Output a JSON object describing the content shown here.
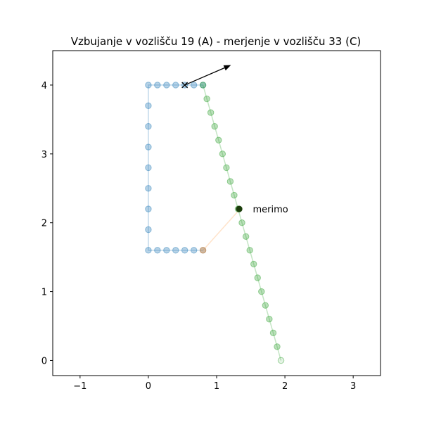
{
  "chart_data": {
    "type": "scatter",
    "title": "Vzbujanje v vozlišču 19  (A) - merjenje v vozlišču 33 (C)",
    "xlim": [
      -1.4,
      3.4
    ],
    "ylim": [
      -0.22,
      4.5
    ],
    "xticks": [
      -1,
      0,
      1,
      2,
      3
    ],
    "xtick_labels": [
      "−1",
      "0",
      "1",
      "2",
      "3"
    ],
    "yticks": [
      0,
      1,
      2,
      3,
      4
    ],
    "ytick_labels": [
      "0",
      "1",
      "2",
      "3",
      "4"
    ],
    "grid": false,
    "colors": {
      "blue": "#1f77b4",
      "green": "#2ca02c",
      "orange": "#ff7f0e",
      "measure": "#1a3d0a",
      "arrow": "#000000"
    },
    "series": [
      {
        "points": [
          [
            0.8,
            1.6
          ],
          [
            0.667,
            1.6
          ],
          [
            0.533,
            1.6
          ],
          [
            0.4,
            1.6
          ],
          [
            0.267,
            1.6
          ],
          [
            0.133,
            1.6
          ],
          [
            0.0,
            1.6
          ],
          [
            0.0,
            1.9
          ],
          [
            0.0,
            2.2
          ],
          [
            0.0,
            2.5
          ],
          [
            0.0,
            2.8
          ],
          [
            0.0,
            3.1
          ],
          [
            0.0,
            3.4
          ],
          [
            0.0,
            3.7
          ],
          [
            0.0,
            4.0
          ],
          [
            0.133,
            4.0
          ],
          [
            0.267,
            4.0
          ],
          [
            0.4,
            4.0
          ],
          [
            0.533,
            4.0
          ],
          [
            0.667,
            4.0
          ],
          [
            0.8,
            4.0
          ]
        ]
      },
      {
        "points": [
          [
            0.8,
            4.0
          ],
          [
            0.857,
            3.8
          ],
          [
            0.914,
            3.6
          ],
          [
            0.971,
            3.4
          ],
          [
            1.029,
            3.2
          ],
          [
            1.086,
            3.0
          ],
          [
            1.143,
            2.8
          ],
          [
            1.2,
            2.6
          ],
          [
            1.257,
            2.4
          ],
          [
            1.314,
            2.2
          ],
          [
            1.371,
            2.0
          ],
          [
            1.429,
            1.8
          ],
          [
            1.486,
            1.6
          ],
          [
            1.543,
            1.4
          ],
          [
            1.6,
            1.2
          ],
          [
            1.657,
            1.0
          ],
          [
            1.714,
            0.8
          ],
          [
            1.771,
            0.6
          ],
          [
            1.829,
            0.4
          ],
          [
            1.886,
            0.2
          ],
          [
            1.943,
            0.0
          ]
        ]
      },
      {
        "points": [
          [
            0.8,
            1.6
          ],
          [
            1.343,
            2.2
          ]
        ]
      }
    ],
    "excitation": {
      "node": 19,
      "x": 0.533,
      "y": 4.0,
      "arrow_to": [
        1.21,
        4.29
      ]
    },
    "measurement": {
      "node": 33,
      "x": 1.33,
      "y": 2.2,
      "label": "merimo",
      "label_x": 1.53,
      "label_y": 2.2
    }
  }
}
